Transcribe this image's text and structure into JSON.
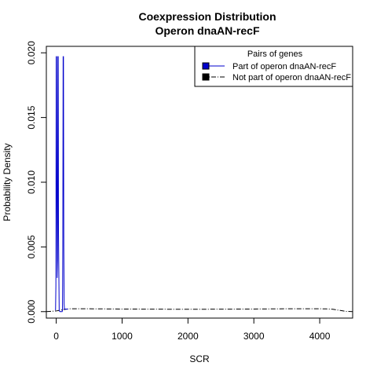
{
  "chart_data": {
    "type": "line",
    "title": "Coexpression Distribution",
    "subtitle": "Operon dnaAN-recF",
    "xlabel": "SCR",
    "ylabel": "Probability Density",
    "xlim": [
      -150,
      4500
    ],
    "ylim": [
      -0.0005,
      0.0205
    ],
    "x_ticks": [
      {
        "value": 0,
        "label": "0"
      },
      {
        "value": 1000,
        "label": "1000"
      },
      {
        "value": 2000,
        "label": "2000"
      },
      {
        "value": 3000,
        "label": "3000"
      },
      {
        "value": 4000,
        "label": "4000"
      }
    ],
    "y_ticks": [
      {
        "value": 0.0,
        "label": "0.000"
      },
      {
        "value": 0.005,
        "label": "0.005"
      },
      {
        "value": 0.01,
        "label": "0.010"
      },
      {
        "value": 0.015,
        "label": "0.015"
      },
      {
        "value": 0.02,
        "label": "0.020"
      }
    ],
    "grid": false,
    "legend": {
      "title": "Pairs of genes",
      "placement": "top-right"
    },
    "series": [
      {
        "name": "Part of operon dnaAN-recF",
        "color": "#0000cc",
        "line_style": "solid",
        "x": [
          -10,
          -5,
          0,
          5,
          10,
          15,
          20,
          25,
          30,
          35,
          45,
          55,
          75,
          90,
          95,
          100,
          105,
          110,
          115,
          120,
          125,
          130,
          145,
          160,
          180
        ],
        "y": [
          0.0001,
          0.002,
          0.0197,
          0.0197,
          0.008,
          0.0026,
          0.004,
          0.0197,
          0.0197,
          0.006,
          0.0001,
          0.0,
          0.0,
          0.0,
          0.0001,
          0.005,
          0.0197,
          0.0197,
          0.005,
          0.0006,
          0.0002,
          0.0002,
          0.0002,
          0.0002,
          0.0002
        ]
      },
      {
        "name": "Not part of operon dnaAN-recF",
        "color": "#000000",
        "line_style": "dashdot",
        "x": [
          -150,
          0,
          50,
          100,
          200,
          500,
          1000,
          1500,
          2000,
          2500,
          3000,
          3500,
          4000,
          4100,
          4200,
          4300,
          4400,
          4500
        ],
        "y": [
          0.0,
          5e-05,
          0.0001,
          0.00015,
          0.00022,
          0.00022,
          0.0002,
          0.00019,
          0.00018,
          0.00019,
          0.0002,
          0.00022,
          0.00022,
          0.00021,
          0.00018,
          0.0001,
          2e-05,
          0.0
        ]
      }
    ]
  }
}
